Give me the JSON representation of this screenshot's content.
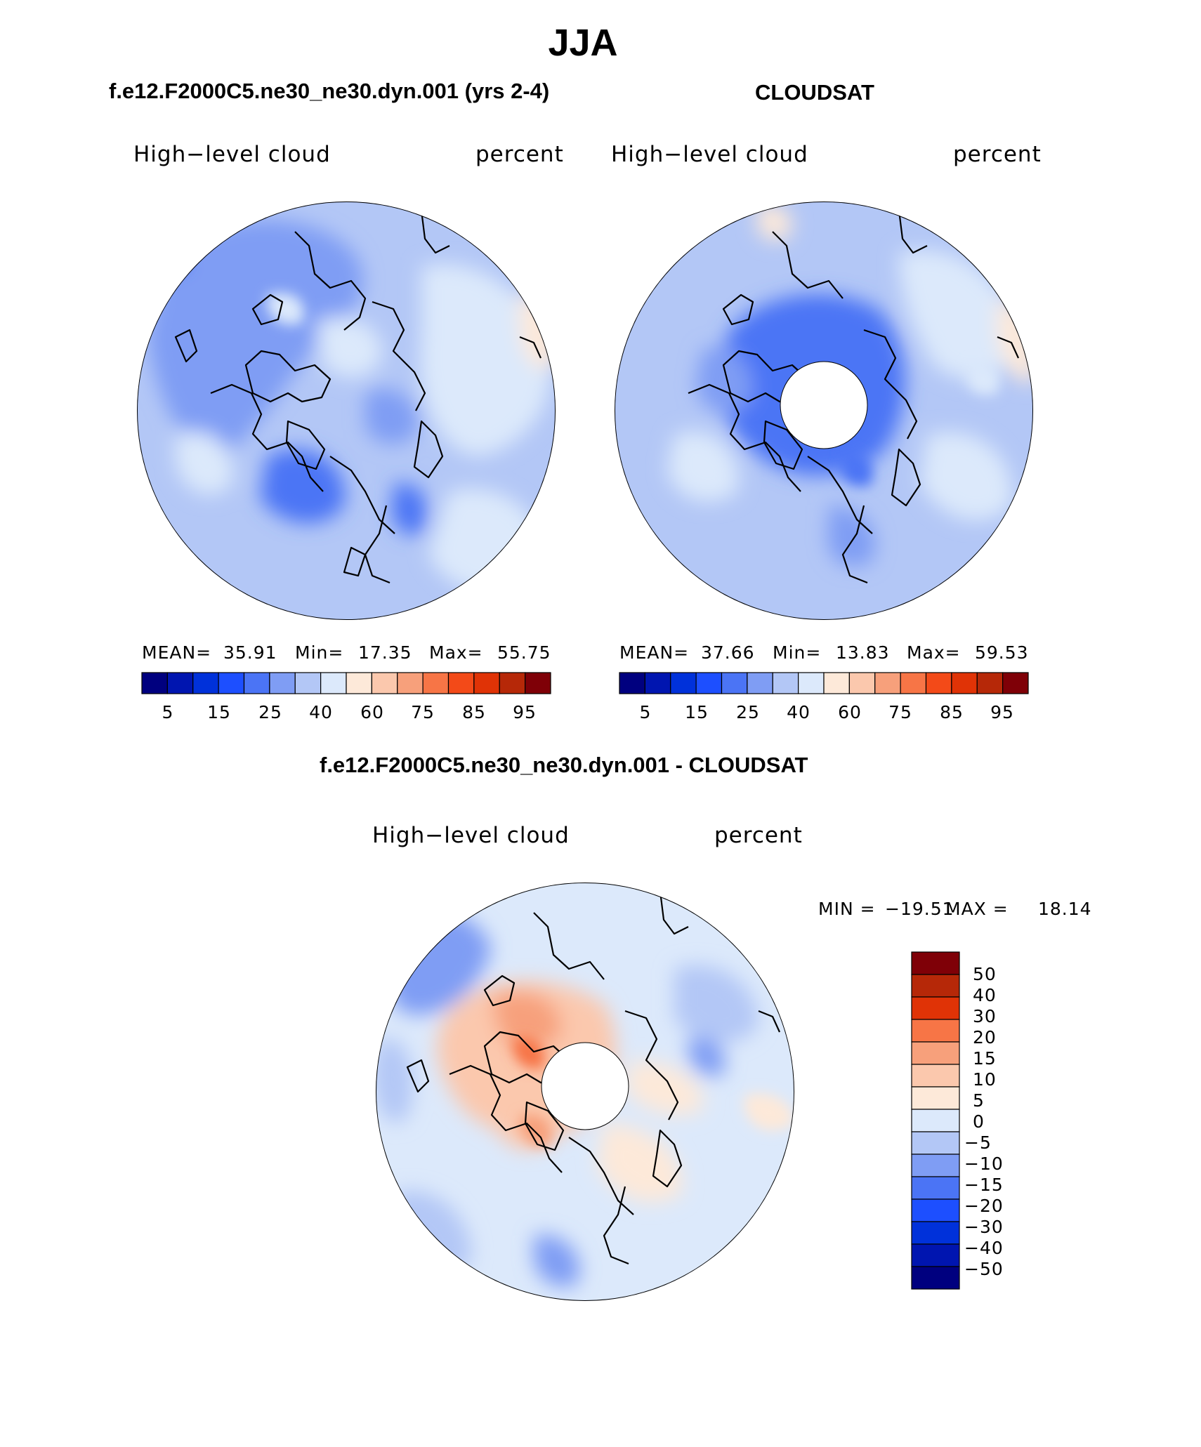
{
  "title": "JJA",
  "panels": [
    {
      "title": "f.e12.F2000C5.ne30_ne30.dyn.001 (yrs 2-4)",
      "variable": "High−level cloud",
      "units": "percent",
      "stats": {
        "mean_label": "MEAN=",
        "mean": "35.91",
        "min_label": "Min=",
        "min": "17.35",
        "max_label": "Max=",
        "max": "55.75"
      }
    },
    {
      "title": "CLOUDSAT",
      "variable": "High−level cloud",
      "units": "percent",
      "stats": {
        "mean_label": "MEAN=",
        "mean": "37.66",
        "min_label": "Min=",
        "min": "13.83",
        "max_label": "Max=",
        "max": "59.53"
      }
    }
  ],
  "abs_colorbar": {
    "colors": [
      "#00007f",
      "#0015b0",
      "#0031da",
      "#1d4fff",
      "#4b74f5",
      "#7f9df4",
      "#b3c7f6",
      "#dce9fb",
      "#fde9d9",
      "#fbc8ad",
      "#f7a07b",
      "#f77546",
      "#f34a18",
      "#e03306",
      "#b62808",
      "#7f0007"
    ],
    "labels": [
      "5",
      "15",
      "25",
      "40",
      "60",
      "75",
      "85",
      "95"
    ]
  },
  "diff_panel": {
    "title": "f.e12.F2000C5.ne30_ne30.dyn.001 - CLOUDSAT",
    "variable": "High−level cloud",
    "units": "percent",
    "min_label": "MIN =",
    "min": "−19.51",
    "max_label": "MAX =",
    "max": "18.14",
    "colors": [
      "#7f0007",
      "#b62808",
      "#e03306",
      "#f77546",
      "#f7a07b",
      "#fbc8ad",
      "#fde9d9",
      "#dce9fb",
      "#b3c7f6",
      "#7f9df4",
      "#4b74f5",
      "#1d4fff",
      "#0031da",
      "#0015b0",
      "#00007f"
    ],
    "levels": [
      "50",
      "40",
      "30",
      "20",
      "15",
      "10",
      "5",
      "0",
      "−5",
      "−10",
      "−15",
      "−20",
      "−30",
      "−40",
      "−50"
    ]
  }
}
